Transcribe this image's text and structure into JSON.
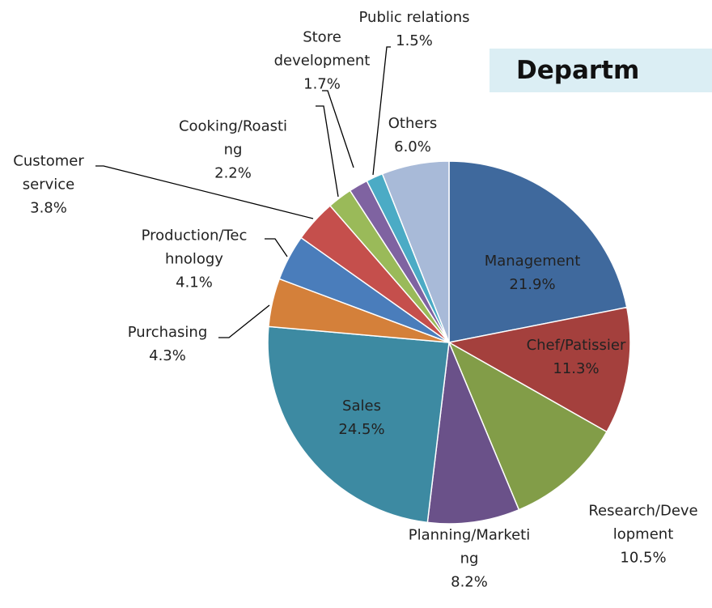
{
  "chart_data": {
    "type": "pie",
    "title": "Departm",
    "categories": [
      "Management",
      "Chef/Patissier",
      "Research/Development",
      "Planning/Marketing",
      "Sales",
      "Purchasing",
      "Production/Technology",
      "Customer service",
      "Cooking/Roasting",
      "Store development",
      "Public relations",
      "Others"
    ],
    "values": [
      21.9,
      11.3,
      10.5,
      8.2,
      24.5,
      4.3,
      4.1,
      3.8,
      2.2,
      1.7,
      1.5,
      6.0
    ],
    "value_labels": [
      "21.9%",
      "11.3%",
      "10.5%",
      "8.2%",
      "24.5%",
      "4.3%",
      "4.1%",
      "3.8%",
      "2.2%",
      "1.7%",
      "1.5%",
      "6.0%"
    ],
    "colors": [
      "#3f699d",
      "#a4403d",
      "#829d48",
      "#6a5189",
      "#3d8aa2",
      "#d4803a",
      "#4a7dbb",
      "#c54f4c",
      "#9aba59",
      "#7f63a1",
      "#4babc5",
      "#a8bad8"
    ]
  }
}
